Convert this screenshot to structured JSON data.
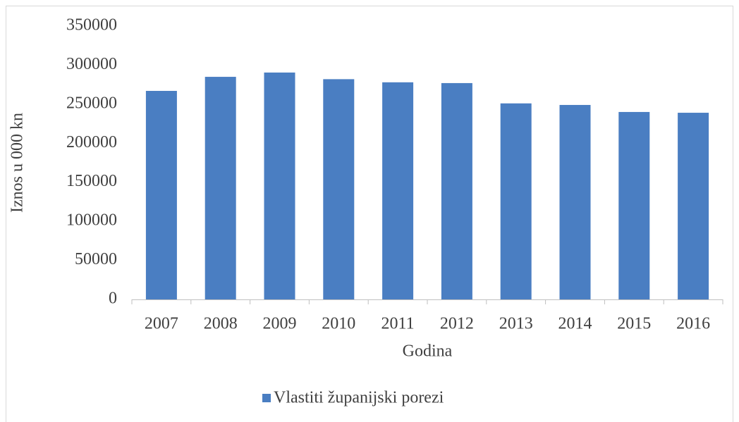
{
  "chart_data": {
    "type": "bar",
    "x_label": "Godina",
    "y_label": "Iznos u 000 kn",
    "categories": [
      "2007",
      "2008",
      "2009",
      "2010",
      "2011",
      "2012",
      "2013",
      "2014",
      "2015",
      "2016"
    ],
    "series": [
      {
        "name": "Vlastiti županijski porezi",
        "color": "#4a7ec2",
        "values": [
          267000,
          285000,
          290500,
          282000,
          278000,
          277000,
          251000,
          249000,
          240000,
          239000
        ]
      }
    ],
    "ylim": [
      0,
      350000
    ],
    "yticks": [
      0,
      50000,
      100000,
      150000,
      200000,
      250000,
      300000,
      350000
    ],
    "grid": false,
    "legend": "bottom"
  }
}
